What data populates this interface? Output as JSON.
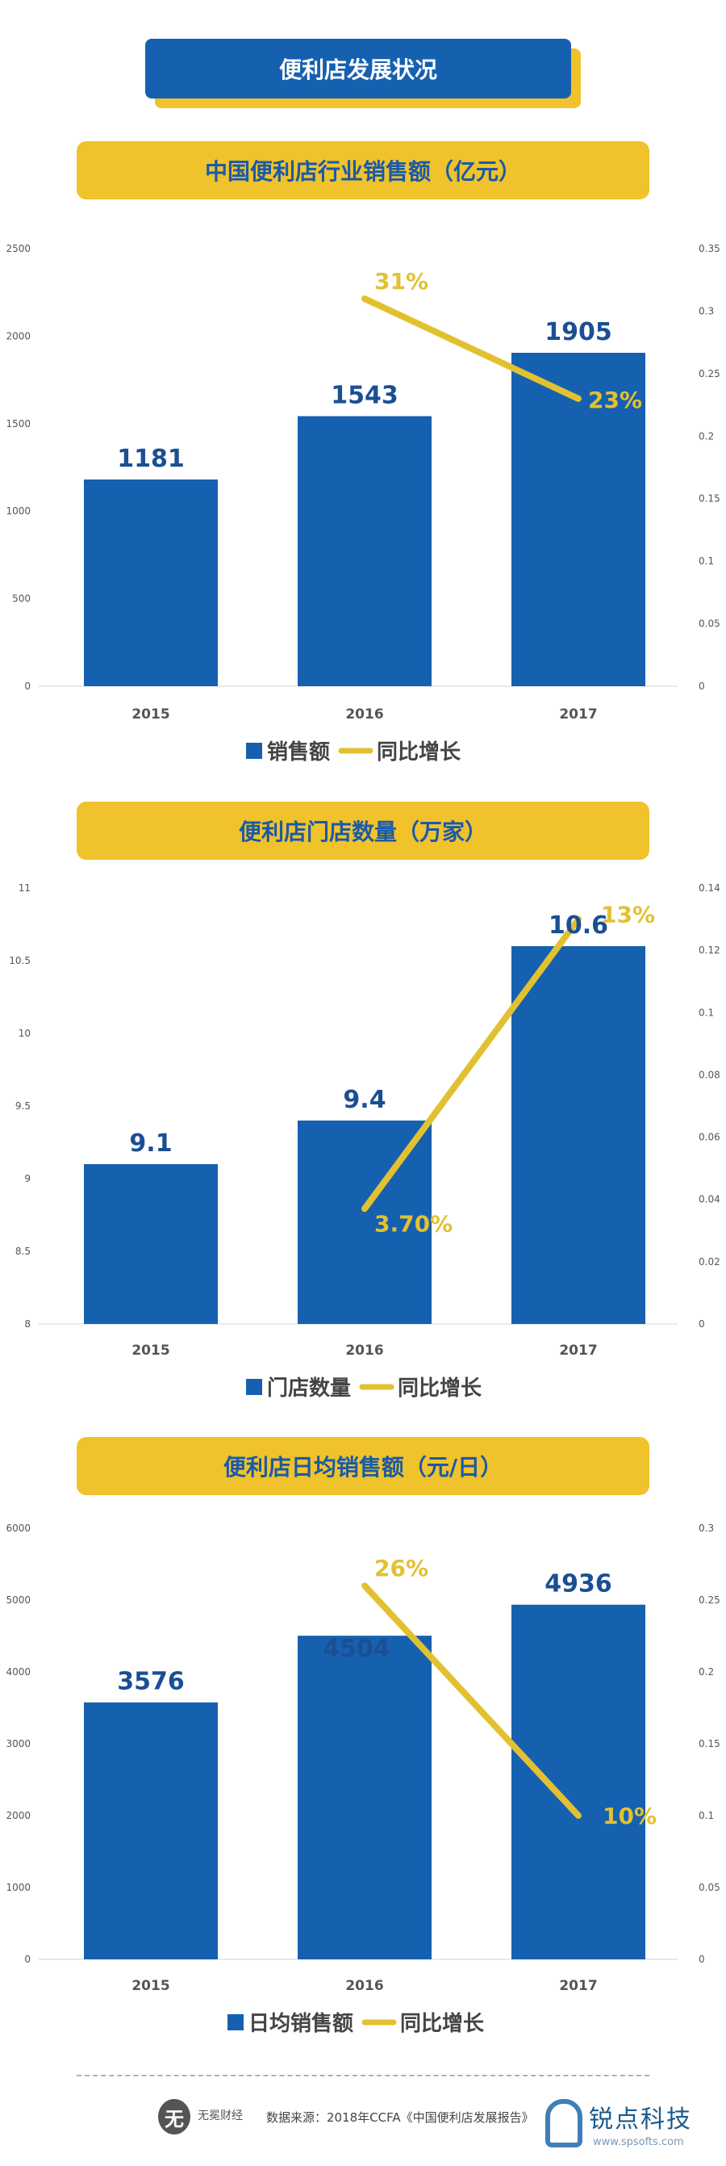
{
  "page_title": "便利店发展状况",
  "colors": {
    "bar": "#1660b0",
    "line": "#e2c131",
    "banner": "#1660b0",
    "pill": "#f0c22b"
  },
  "chart_data": [
    {
      "type": "bar",
      "title": "中国便利店行业销售额（亿元）",
      "categories": [
        "2015",
        "2016",
        "2017"
      ],
      "series": [
        {
          "name": "销售额",
          "values": [
            1181,
            1543,
            1905
          ],
          "labels": [
            "1181",
            "1543",
            "1905"
          ]
        }
      ],
      "line_series": {
        "name": "同比增长",
        "x": [
          "2016",
          "2017"
        ],
        "values": [
          0.31,
          0.23
        ],
        "labels": [
          "31%",
          "23%"
        ]
      },
      "ylim": [
        0,
        2500
      ],
      "yticks": [
        "0",
        "500",
        "1000",
        "1500",
        "2000",
        "2500"
      ],
      "y2lim": [
        0,
        0.35
      ],
      "y2ticks": [
        "0",
        "0.05",
        "0.1",
        "0.15",
        "0.2",
        "0.25",
        "0.3",
        "0.35"
      ],
      "legend": [
        "销售额",
        "同比增长"
      ],
      "legend_position": "bottom",
      "grid": false
    },
    {
      "type": "bar",
      "title": "便利店门店数量（万家）",
      "categories": [
        "2015",
        "2016",
        "2017"
      ],
      "series": [
        {
          "name": "门店数量",
          "values": [
            9.1,
            9.4,
            10.6
          ],
          "labels": [
            "9.1",
            "9.4",
            "10.6"
          ]
        }
      ],
      "line_series": {
        "name": "同比增长",
        "x": [
          "2016",
          "2017"
        ],
        "values": [
          0.037,
          0.13
        ],
        "labels": [
          "3.70%",
          "13%"
        ]
      },
      "ylim": [
        8,
        11
      ],
      "yticks": [
        "8",
        "8.5",
        "9",
        "9.5",
        "10",
        "10.5",
        "11"
      ],
      "y2lim": [
        0,
        0.14
      ],
      "y2ticks": [
        "0",
        "0.02",
        "0.04",
        "0.06",
        "0.08",
        "0.1",
        "0.12",
        "0.14"
      ],
      "legend": [
        "门店数量",
        "同比增长"
      ],
      "legend_position": "bottom",
      "grid": false
    },
    {
      "type": "bar",
      "title": "便利店日均销售额（元/日）",
      "categories": [
        "2015",
        "2016",
        "2017"
      ],
      "series": [
        {
          "name": "日均销售额",
          "values": [
            3576,
            4504,
            4936
          ],
          "labels": [
            "3576",
            "4504",
            "4936"
          ]
        }
      ],
      "line_series": {
        "name": "同比增长",
        "x": [
          "2016",
          "2017"
        ],
        "values": [
          0.26,
          0.1
        ],
        "labels": [
          "26%",
          "10%"
        ]
      },
      "ylim": [
        0,
        6000
      ],
      "yticks": [
        "0",
        "1000",
        "2000",
        "3000",
        "4000",
        "5000",
        "6000"
      ],
      "y2lim": [
        0,
        0.3
      ],
      "y2ticks": [
        "0",
        "0.05",
        "0.1",
        "0.15",
        "0.2",
        "0.25",
        "0.3"
      ],
      "legend": [
        "日均销售额",
        "同比增长"
      ],
      "legend_position": "bottom",
      "grid": false
    }
  ],
  "footer": {
    "logo_text": "无冕财经",
    "source": "数据来源：2018年CCFA《中国便利店发展报告》",
    "watermark": "锐点科技",
    "watermark_url": "www.spsofts.com"
  }
}
